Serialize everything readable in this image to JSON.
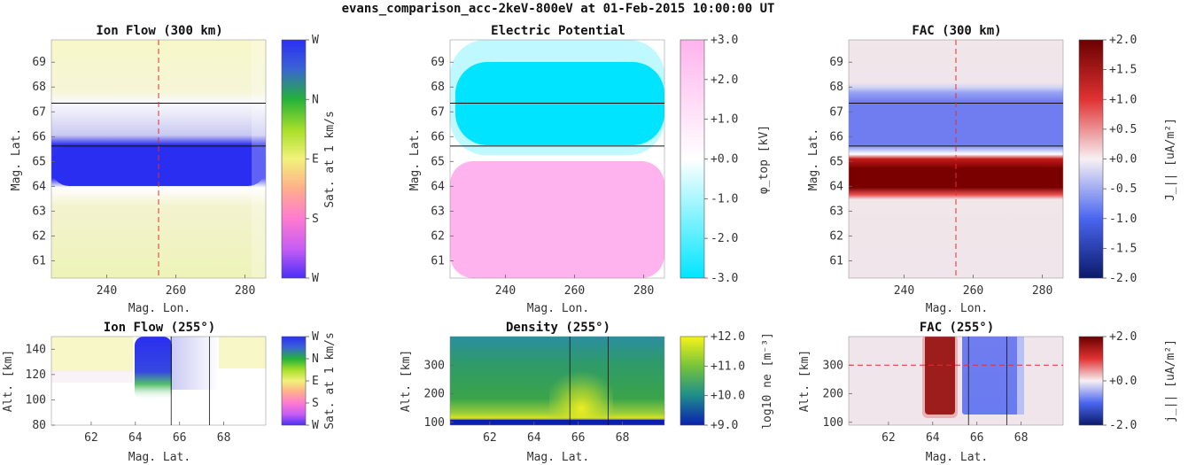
{
  "figure_title": "evans_comparison_acc-2keV-800eV at 01-Feb-2015 10:00:00 UT",
  "colors": {
    "flow_blue": "#2a2ef0",
    "potential_cyan": "#00e5ff",
    "potential_pink": "#ffb3ee",
    "fac_red": "#7a0000",
    "fac_blue": "#6f7df0",
    "ref_line": "#e03030",
    "black_line": "#111111"
  },
  "chart_data": [
    {
      "type": "heatmap",
      "title": "Ion Flow (300 km)",
      "xlabel": "Mag. Lon.",
      "ylabel": "Mag. Lat.",
      "xlim": [
        224,
        286
      ],
      "ylim": [
        60.3,
        69.9
      ],
      "xticks": [
        240,
        260,
        280
      ],
      "yticks": [
        61,
        62,
        63,
        64,
        65,
        66,
        67,
        68,
        69
      ],
      "hlines": [
        67.35,
        65.62
      ],
      "vline_dashed": 255,
      "colorbar": {
        "label": "Sat. at 1 km/s",
        "ticks": [
          "W",
          "S",
          "E",
          "N",
          "W"
        ]
      },
      "bands": [
        {
          "from": 64.0,
          "to": 65.6,
          "value": "W (saturated)"
        },
        {
          "from": 65.6,
          "to": 67.4,
          "value": "weak W/N"
        },
        {
          "from": 60.3,
          "to": 64.0,
          "value": "weak E"
        },
        {
          "from": 67.4,
          "to": 69.9,
          "value": "weak E"
        }
      ]
    },
    {
      "type": "heatmap",
      "title": "Electric Potential",
      "xlabel": "Mag. Lon.",
      "ylabel": "Mag. Lat.",
      "xlim": [
        224,
        286
      ],
      "ylim": [
        60.3,
        69.9
      ],
      "xticks": [
        240,
        260,
        280
      ],
      "yticks": [
        61,
        62,
        63,
        64,
        65,
        66,
        67,
        68,
        69
      ],
      "hlines": [
        67.35,
        65.62
      ],
      "colorbar": {
        "label": "φ_top [kV]",
        "ticks": [
          "-3.0",
          "-2.0",
          "-1.0",
          "+0.0",
          "+1.0",
          "+2.0",
          "+3.0"
        ],
        "range": [
          -3,
          3
        ]
      },
      "bands": [
        {
          "from": 65.5,
          "to": 68.5,
          "value": -3.0
        },
        {
          "from": 60.3,
          "to": 65.0,
          "value": 2.0
        }
      ]
    },
    {
      "type": "heatmap",
      "title": "FAC (300 km)",
      "xlabel": "Mag. Lon.",
      "ylabel": "Mag. Lat.",
      "xlim": [
        224,
        286
      ],
      "ylim": [
        60.3,
        69.9
      ],
      "xticks": [
        240,
        260,
        280
      ],
      "yticks": [
        61,
        62,
        63,
        64,
        65,
        66,
        67,
        68,
        69
      ],
      "hlines": [
        67.35,
        65.62
      ],
      "vline_dashed": 255,
      "colorbar": {
        "label": "J_|| [uA/m²]",
        "ticks": [
          "-2.0",
          "-1.5",
          "-1.0",
          "-0.5",
          "+0.0",
          "+0.5",
          "+1.0",
          "+1.5",
          "+2.0"
        ],
        "range": [
          -2,
          2
        ]
      },
      "bands": [
        {
          "from": 63.8,
          "to": 65.2,
          "value": 2.0
        },
        {
          "from": 65.5,
          "to": 68.1,
          "value": -1.2
        }
      ]
    },
    {
      "type": "heatmap",
      "title": "Ion Flow (255°)",
      "xlabel": "Mag. Lat.",
      "ylabel": "Alt. [km]",
      "xlim": [
        60.2,
        69.9
      ],
      "ylim": [
        80,
        150
      ],
      "xticks": [
        62,
        64,
        66,
        68
      ],
      "yticks": [
        80,
        100,
        120,
        140
      ],
      "vlines": [
        65.62,
        67.35
      ],
      "colorbar": {
        "label": "Sat. at 1 km/s",
        "ticks": [
          "W",
          "S",
          "E",
          "N",
          "W"
        ]
      }
    },
    {
      "type": "heatmap",
      "title": "Density (255°)",
      "xlabel": "Mag. Lat.",
      "ylabel": "Alt. [km]",
      "xlim": [
        60.2,
        69.9
      ],
      "ylim": [
        90,
        400
      ],
      "xticks": [
        62,
        64,
        66,
        68
      ],
      "yticks": [
        100,
        200,
        300
      ],
      "vlines": [
        65.62,
        67.35
      ],
      "colorbar": {
        "label": "log10 ne [m⁻³]",
        "ticks": [
          "+9.0",
          "+10.0",
          "+11.0",
          "+12.0"
        ],
        "range": [
          9,
          12
        ]
      }
    },
    {
      "type": "heatmap",
      "title": "FAC (255°)",
      "xlabel": "Mag. Lat.",
      "ylabel": "Alt. [km]",
      "xlim": [
        60.2,
        69.9
      ],
      "ylim": [
        90,
        400
      ],
      "xticks": [
        62,
        64,
        66,
        68
      ],
      "yticks": [
        100,
        200,
        300
      ],
      "vlines": [
        65.62,
        67.35
      ],
      "hline_dashed": 300,
      "colorbar": {
        "label": "j_|| [uA/m²]",
        "ticks": [
          "-2.0",
          "+0.0",
          "+2.0"
        ],
        "range": [
          -2,
          2
        ]
      }
    }
  ]
}
